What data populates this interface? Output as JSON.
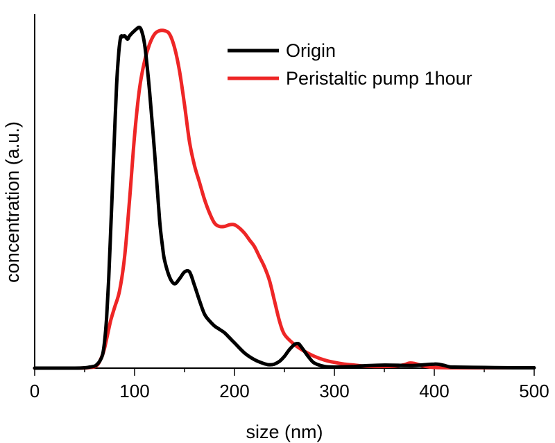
{
  "chart_data": {
    "type": "line",
    "xlabel": "size (nm)",
    "ylabel": "concentration (a.u.)",
    "xlim": [
      0,
      500
    ],
    "ylim": [
      0,
      1.05
    ],
    "x_ticks": [
      0,
      100,
      200,
      300,
      400,
      500
    ],
    "x_tick_labels": [
      "0",
      "100",
      "200",
      "300",
      "400",
      "500"
    ],
    "grid": false,
    "legend_position": "top-right",
    "series": [
      {
        "name": "Origin",
        "color": "#000000",
        "x": [
          0,
          40,
          50,
          55,
          60,
          62,
          65,
          68,
          70,
          72,
          74,
          76,
          78,
          80,
          82,
          84,
          85,
          86,
          87,
          88,
          90,
          93,
          95,
          100,
          105,
          108,
          110,
          112,
          115,
          120,
          125,
          128,
          130,
          135,
          140,
          145,
          150,
          155,
          160,
          165,
          170,
          175,
          180,
          185,
          190,
          195,
          200,
          210,
          220,
          230,
          235,
          240,
          245,
          250,
          255,
          260,
          263,
          265,
          270,
          275,
          280,
          290,
          300,
          310,
          320,
          330,
          350,
          370,
          380,
          390,
          400,
          405,
          410,
          415,
          420,
          450,
          480,
          500
        ],
        "y": [
          0,
          0,
          0.001,
          0.003,
          0.006,
          0.01,
          0.02,
          0.04,
          0.08,
          0.15,
          0.26,
          0.4,
          0.55,
          0.7,
          0.84,
          0.93,
          0.96,
          0.98,
          0.985,
          0.982,
          0.985,
          0.975,
          0.985,
          1.0,
          1.01,
          0.99,
          0.96,
          0.91,
          0.82,
          0.64,
          0.44,
          0.36,
          0.32,
          0.27,
          0.25,
          0.265,
          0.285,
          0.285,
          0.245,
          0.2,
          0.16,
          0.14,
          0.125,
          0.115,
          0.105,
          0.09,
          0.075,
          0.045,
          0.025,
          0.013,
          0.01,
          0.012,
          0.02,
          0.035,
          0.055,
          0.07,
          0.073,
          0.07,
          0.05,
          0.03,
          0.015,
          0.005,
          0.003,
          0.004,
          0.005,
          0.007,
          0.009,
          0.008,
          0.008,
          0.01,
          0.012,
          0.011,
          0.008,
          0.004,
          0.003,
          0.002,
          0.001,
          0.001
        ]
      },
      {
        "name": "Peristaltic pump 1hour",
        "color": "#ee2626",
        "x": [
          0,
          45,
          55,
          60,
          63,
          65,
          68,
          70,
          73,
          76,
          80,
          85,
          90,
          95,
          100,
          105,
          110,
          115,
          120,
          125,
          130,
          135,
          140,
          145,
          150,
          155,
          160,
          165,
          170,
          175,
          180,
          185,
          190,
          195,
          200,
          205,
          210,
          215,
          220,
          225,
          230,
          235,
          240,
          245,
          250,
          260,
          270,
          280,
          290,
          300,
          310,
          320,
          330,
          340,
          350,
          360,
          370,
          375,
          380,
          385,
          390,
          400,
          420,
          450,
          480
        ],
        "y": [
          0,
          0,
          0.002,
          0.004,
          0.01,
          0.02,
          0.04,
          0.06,
          0.1,
          0.14,
          0.18,
          0.23,
          0.33,
          0.5,
          0.69,
          0.83,
          0.91,
          0.96,
          0.99,
          1.0,
          1.0,
          0.99,
          0.95,
          0.88,
          0.78,
          0.67,
          0.6,
          0.55,
          0.5,
          0.46,
          0.43,
          0.42,
          0.42,
          0.425,
          0.425,
          0.415,
          0.4,
          0.38,
          0.36,
          0.33,
          0.3,
          0.26,
          0.2,
          0.14,
          0.1,
          0.07,
          0.05,
          0.035,
          0.024,
          0.017,
          0.012,
          0.009,
          0.006,
          0.005,
          0.005,
          0.006,
          0.01,
          0.015,
          0.014,
          0.01,
          0.006,
          0.002,
          0.001,
          0.001,
          0.001
        ]
      }
    ]
  }
}
